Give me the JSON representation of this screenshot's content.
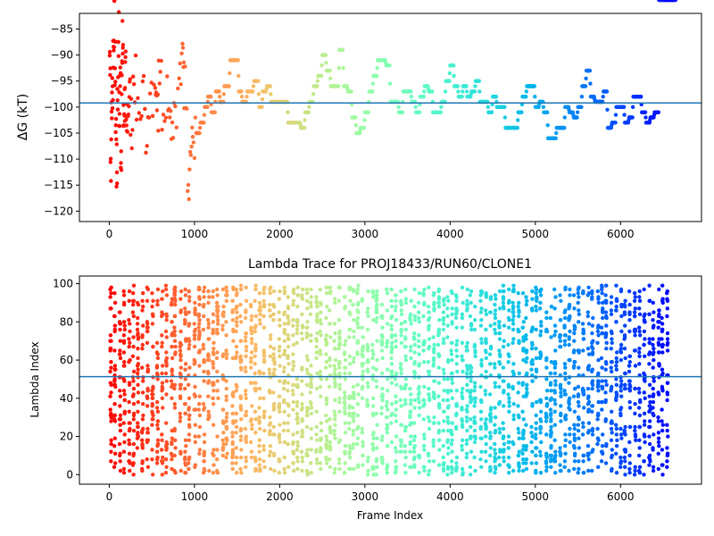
{
  "chart_data": [
    {
      "type": "scatter",
      "title": "",
      "xlabel": "",
      "ylabel": "ΔG (kT)",
      "xlim": [
        -350,
        6950
      ],
      "ylim": [
        -122,
        -82
      ],
      "xticks": [
        0,
        1000,
        2000,
        3000,
        4000,
        5000,
        6000
      ],
      "xtick_labels": [
        "0",
        "1000",
        "2000",
        "3000",
        "4000",
        "5000",
        "6000"
      ],
      "yticks": [
        -120,
        -115,
        -110,
        -105,
        -100,
        -95,
        -90,
        -85
      ],
      "ytick_labels": [
        "−120",
        "−115",
        "−110",
        "−105",
        "−100",
        "−95",
        "−90",
        "−85"
      ],
      "hline": -99.2,
      "hline_color": "#1f77b4",
      "colormap": "rainbow (colored by frame index, red early to purple late)",
      "points_x": [
        5,
        15,
        25,
        35,
        45,
        55,
        65,
        75,
        85,
        95,
        105,
        115,
        125,
        135,
        145,
        155,
        165,
        175,
        185,
        195,
        210,
        230,
        250,
        280,
        320,
        380,
        430,
        480,
        540,
        560,
        580,
        620,
        680,
        720,
        760,
        820,
        860,
        880,
        920,
        950,
        980,
        1020,
        1070,
        1120,
        1160,
        1200,
        1250,
        1300,
        1350,
        1420,
        1480,
        1520,
        1560,
        1620,
        1700,
        1760,
        1800,
        1850,
        1900,
        1980,
        2050,
        2100,
        2150,
        2200,
        2250,
        2300,
        2350,
        2400,
        2450,
        2500,
        2550,
        2600,
        2650,
        2700,
        2750,
        2800,
        2850,
        2900,
        2950,
        3000,
        3050,
        3100,
        3150,
        3200,
        3250,
        3300,
        3350,
        3400,
        3450,
        3500,
        3550,
        3600,
        3650,
        3700,
        3750,
        3800,
        3850,
        3900,
        3950,
        4000,
        4050,
        4100,
        4150,
        4200,
        4250,
        4300,
        4350,
        4400,
        4450,
        4500,
        4550,
        4600,
        4650,
        4700,
        4750,
        4800,
        4850,
        4900,
        4950,
        5000,
        5050,
        5100,
        5150,
        5200,
        5250,
        5300,
        5350,
        5400,
        5450,
        5500,
        5550,
        5600,
        5650,
        5700,
        5750,
        5800,
        5850,
        5900,
        5950,
        6000,
        6050,
        6100,
        6150,
        6200,
        6250,
        6300,
        6350,
        6400,
        6450,
        6500,
        6550,
        6600
      ],
      "points_y": [
        -90,
        -110,
        -100,
        -96,
        -89,
        -84,
        -92,
        -104,
        -112,
        -97,
        -86,
        -101,
        -95,
        -108,
        -93,
        -88,
        -103,
        -99,
        -94,
        -106,
        -100,
        -97,
        -103,
        -95,
        -102,
        -98,
        -104,
        -99,
        -93,
        -101,
        -91,
        -100,
        -97,
        -102,
        -99,
        -94,
        -90,
        -96,
        -113,
        -108,
        -106,
        -105,
        -103,
        -100,
        -98,
        -101,
        -97,
        -99,
        -96,
        -91,
        -91,
        -97,
        -99,
        -97,
        -95,
        -100,
        -97,
        -96,
        -99,
        -99,
        -99,
        -103,
        -103,
        -103,
        -104,
        -101,
        -99,
        -96,
        -94,
        -90,
        -93,
        -96,
        -96,
        -89,
        -96,
        -97,
        -102,
        -105,
        -104,
        -101,
        -97,
        -94,
        -91,
        -91,
        -92,
        -99,
        -99,
        -101,
        -97,
        -97,
        -99,
        -101,
        -98,
        -96,
        -97,
        -101,
        -101,
        -99,
        -95,
        -92,
        -96,
        -98,
        -96,
        -98,
        -97,
        -95,
        -99,
        -99,
        -101,
        -98,
        -100,
        -100,
        -104,
        -104,
        -104,
        -101,
        -98,
        -96,
        -96,
        -100,
        -99,
        -101,
        -106,
        -106,
        -104,
        -104,
        -100,
        -101,
        -102,
        -100,
        -96,
        -93,
        -98,
        -99,
        -99,
        -97,
        -104,
        -103,
        -100,
        -100,
        -103,
        -102,
        -98,
        -98,
        -101,
        -103,
        -102,
        -101
      ],
      "series": []
    },
    {
      "type": "scatter",
      "title": "Lambda Trace for PROJ18433/RUN60/CLONE1",
      "xlabel": "Frame Index",
      "ylabel": "Lambda Index",
      "xlim": [
        -350,
        6950
      ],
      "ylim": [
        -5,
        104
      ],
      "xticks": [
        0,
        1000,
        2000,
        3000,
        4000,
        5000,
        6000
      ],
      "xtick_labels": [
        "0",
        "1000",
        "2000",
        "3000",
        "4000",
        "5000",
        "6000"
      ],
      "yticks": [
        0,
        20,
        40,
        60,
        80,
        100
      ],
      "ytick_labels": [
        "0",
        "20",
        "40",
        "60",
        "80",
        "100"
      ],
      "hline": 51.3,
      "hline_color": "#1f77b4",
      "colormap": "rainbow (colored by frame index, red early to purple late)",
      "note_values": "Dense scatter of lambda indices 0–99 across frames 0–6600; bands of samples in vertical columns",
      "series": []
    }
  ]
}
